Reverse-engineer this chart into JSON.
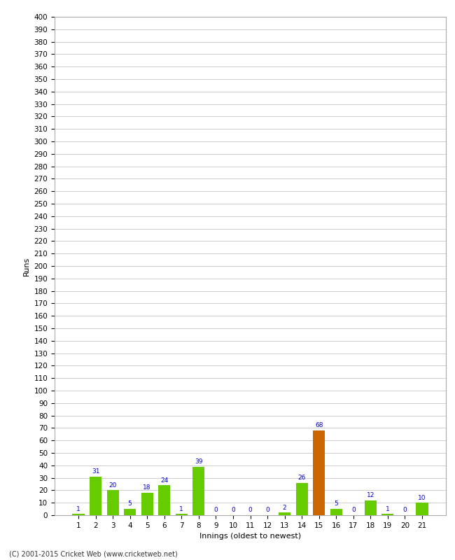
{
  "title": "",
  "xlabel": "Innings (oldest to newest)",
  "ylabel": "Runs",
  "categories": [
    1,
    2,
    3,
    4,
    5,
    6,
    7,
    8,
    9,
    10,
    11,
    12,
    13,
    14,
    15,
    16,
    17,
    18,
    19,
    20,
    21
  ],
  "values": [
    1,
    31,
    20,
    5,
    18,
    24,
    1,
    39,
    0,
    0,
    0,
    0,
    2,
    26,
    68,
    5,
    0,
    12,
    1,
    0,
    10
  ],
  "bar_colors": [
    "#66cc00",
    "#66cc00",
    "#66cc00",
    "#66cc00",
    "#66cc00",
    "#66cc00",
    "#66cc00",
    "#66cc00",
    "#66cc00",
    "#66cc00",
    "#66cc00",
    "#66cc00",
    "#66cc00",
    "#66cc00",
    "#cc6600",
    "#66cc00",
    "#66cc00",
    "#66cc00",
    "#66cc00",
    "#66cc00",
    "#66cc00"
  ],
  "ylim": [
    0,
    400
  ],
  "ytick_step": 10,
  "grid_color": "#cccccc",
  "label_color": "#0000cc",
  "bar_label_fontsize": 6.5,
  "axis_label_fontsize": 8,
  "tick_fontsize": 7.5,
  "footer": "(C) 2001-2015 Cricket Web (www.cricketweb.net)",
  "bg_color": "#ffffff",
  "plot_bg_color": "#ffffff",
  "spine_color": "#aaaaaa"
}
